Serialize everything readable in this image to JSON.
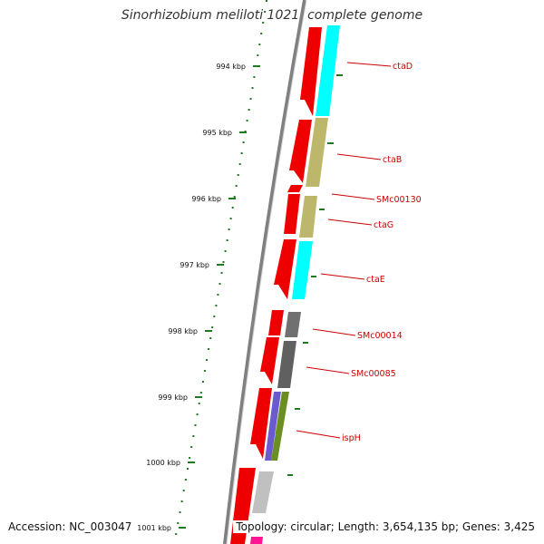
{
  "header": {
    "title": "Sinorhizobium meliloti 1021, complete genome"
  },
  "footer": {
    "accession": "Accession: NC_003047",
    "summary": "Topology: circular; Length: 3,654,135 bp; Genes: 3,425"
  },
  "colors": {
    "backbone": "#8a8a8a",
    "tick": "#1f7a1f",
    "gene": "#ee0000",
    "label": "#cc0000"
  },
  "ticks": [
    {
      "label": "994 kbp"
    },
    {
      "label": "995 kbp"
    },
    {
      "label": "996 kbp"
    },
    {
      "label": "997 kbp"
    },
    {
      "label": "998 kbp"
    },
    {
      "label": "999 kbp"
    },
    {
      "label": "1000 kbp"
    },
    {
      "label": "1001 kbp"
    }
  ],
  "genes": [
    {
      "name": "ctaD"
    },
    {
      "name": "ctaB"
    },
    {
      "name": "SMc00130"
    },
    {
      "name": "ctaG"
    },
    {
      "name": "ctaE"
    },
    {
      "name": "SMc00014"
    },
    {
      "name": "SMc00085"
    },
    {
      "name": "ispH"
    }
  ],
  "cog_colors": [
    "#00ffff",
    "#bdb76b",
    "#bdb76b",
    "#00ffff",
    "#707070",
    "#707070",
    "#6a5acd",
    "#6b8e23",
    "#c0c0c0",
    "#ff1493"
  ]
}
